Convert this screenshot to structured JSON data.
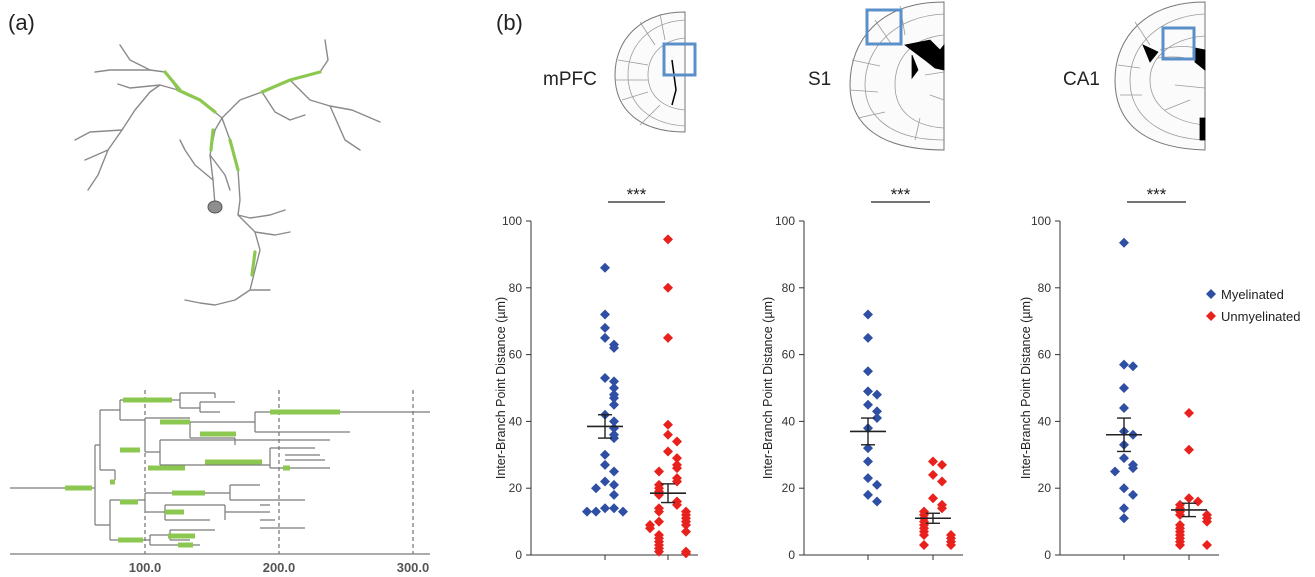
{
  "panel_a": {
    "label": "(a)",
    "axis_ticks": [
      "100.0",
      "200.0",
      "300.0"
    ]
  },
  "panel_b": {
    "label": "(b)",
    "regions": [
      "mPFC",
      "S1",
      "CA1"
    ]
  },
  "legend": [
    {
      "label": "Myelinated",
      "color": "#2e4fa3"
    },
    {
      "label": "Unmyelinated",
      "color": "#e8211c"
    }
  ],
  "colors": {
    "myelinated": "#2e4fa3",
    "unmyelinated": "#e8211c",
    "myelin_segment": "#8cc850",
    "brain_box": "#5b8fc9"
  },
  "chart_data": [
    {
      "type": "scatter",
      "title": "mPFC",
      "significance": "***",
      "ylabel": "Inter-Branch Point Distance (µm)",
      "ylim": [
        0,
        100
      ],
      "yticks": [
        "0",
        "20",
        "40",
        "60",
        "80",
        "100"
      ],
      "series": [
        {
          "name": "Myelinated",
          "mean": 38.5,
          "sem": 3.5,
          "values": [
            86,
            72,
            68,
            65,
            63,
            62,
            53,
            52,
            50,
            48,
            47,
            45,
            42,
            40,
            38,
            36,
            35,
            30,
            27,
            25,
            22,
            21,
            20,
            18,
            14,
            14,
            13,
            13,
            13
          ]
        },
        {
          "name": "Unmyelinated",
          "mean": 18.5,
          "sem": 2.8,
          "values": [
            94.5,
            80,
            65,
            39,
            36,
            34,
            31,
            29,
            27,
            26,
            25,
            23,
            22,
            21,
            20,
            19,
            18,
            16,
            15,
            14,
            13,
            13,
            12,
            11,
            10,
            10,
            9,
            9,
            8,
            7,
            6,
            5,
            4,
            3,
            2,
            1,
            1,
            0.5
          ]
        }
      ]
    },
    {
      "type": "scatter",
      "title": "S1",
      "significance": "***",
      "ylabel": "Inter-Branch Point Distance (µm)",
      "ylim": [
        0,
        100
      ],
      "yticks": [
        "0",
        "20",
        "40",
        "60",
        "80",
        "100"
      ],
      "series": [
        {
          "name": "Myelinated",
          "mean": 37,
          "sem": 4,
          "values": [
            72,
            65,
            55,
            49,
            48,
            45,
            43,
            41,
            38,
            32,
            28,
            23,
            21,
            18,
            16
          ]
        },
        {
          "name": "Unmyelinated",
          "mean": 11,
          "sem": 1.5,
          "values": [
            28,
            27,
            24,
            22,
            17,
            15,
            14,
            13,
            12,
            11,
            10,
            9,
            8,
            7,
            6,
            6,
            5,
            4,
            3,
            3
          ]
        }
      ]
    },
    {
      "type": "scatter",
      "title": "CA1",
      "significance": "***",
      "ylabel": "Inter-Branch Point Distance (µm)",
      "ylim": [
        0,
        100
      ],
      "yticks": [
        "0",
        "20",
        "40",
        "60",
        "80",
        "100"
      ],
      "series": [
        {
          "name": "Myelinated",
          "mean": 36,
          "sem": 5,
          "values": [
            93.5,
            57,
            56.5,
            50,
            44,
            37,
            36,
            33,
            29,
            27,
            26,
            25,
            20,
            18,
            14,
            11
          ]
        },
        {
          "name": "Unmyelinated",
          "mean": 13.5,
          "sem": 2,
          "values": [
            42.5,
            31.5,
            17,
            16,
            15,
            14,
            13,
            12,
            12,
            11,
            10,
            9,
            8,
            7,
            6,
            5,
            4,
            3,
            3
          ]
        }
      ]
    }
  ]
}
